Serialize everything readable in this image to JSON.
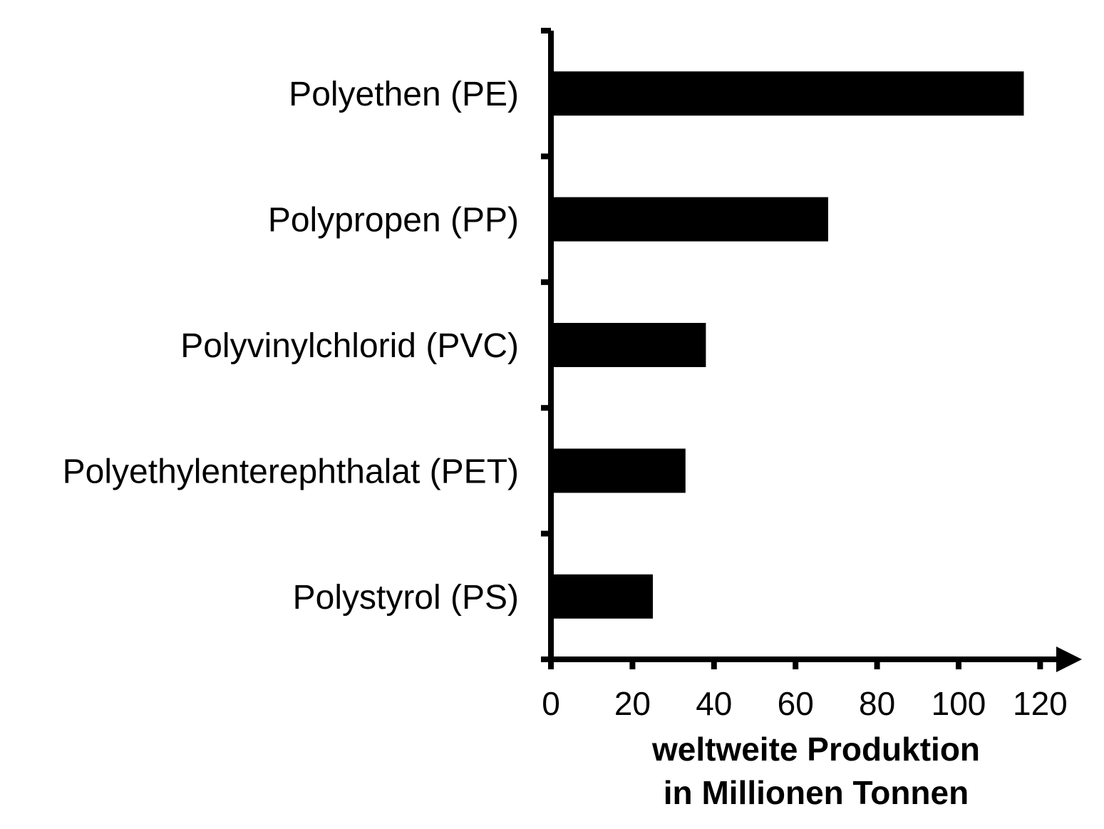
{
  "chart_data": {
    "type": "bar",
    "orientation": "horizontal",
    "categories": [
      "Polyethen (PE)",
      "Polypropen (PP)",
      "Polyvinylchlorid (PVC)",
      "Polyethylenterephthalat (PET)",
      "Polystyrol (PS)"
    ],
    "values": [
      116,
      68,
      38,
      33,
      25
    ],
    "xlabel_lines": [
      "weltweite Produktion",
      "in Millionen Tonnen"
    ],
    "xlim": [
      0,
      120
    ],
    "xticks": [
      "0",
      "20",
      "40",
      "60",
      "80",
      "100",
      "120"
    ],
    "grid": false,
    "bar_color": "#000000"
  }
}
